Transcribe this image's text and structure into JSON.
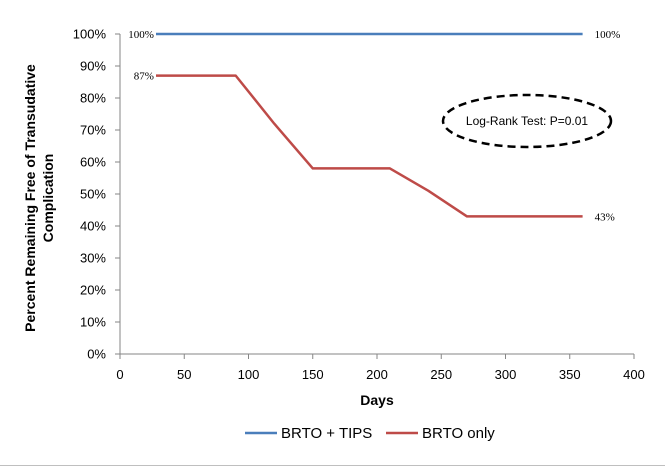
{
  "chart_data": {
    "type": "line",
    "title": "",
    "xlabel": "Days",
    "ylabel_line1": "Percent Remaining Free of Transudative",
    "ylabel_line2": "Complication",
    "xlim": [
      0,
      400
    ],
    "ylim": [
      0,
      100
    ],
    "x_ticks": [
      "0",
      "50",
      "100",
      "150",
      "200",
      "250",
      "300",
      "350",
      "400"
    ],
    "y_ticks": [
      "0%",
      "10%",
      "20%",
      "30%",
      "40%",
      "50%",
      "60%",
      "70%",
      "80%",
      "90%",
      "100%"
    ],
    "grid": false,
    "legend_position": "bottom",
    "series": [
      {
        "name": "BRTO + TIPS",
        "color": "#4a7ebb",
        "x": [
          28,
          90,
          150,
          210,
          240,
          270,
          360
        ],
        "y": [
          100,
          100,
          100,
          100,
          100,
          100,
          100
        ]
      },
      {
        "name": "BRTO only",
        "color": "#be4b48",
        "x": [
          28,
          90,
          120,
          150,
          210,
          240,
          270,
          360
        ],
        "y": [
          87,
          87,
          72,
          58,
          58,
          51,
          43,
          43
        ]
      }
    ],
    "data_labels": [
      {
        "text": "100%",
        "series": 0,
        "point": 0,
        "side": "left"
      },
      {
        "text": "100%",
        "series": 0,
        "point": 6,
        "side": "right"
      },
      {
        "text": "87%",
        "series": 1,
        "point": 0,
        "side": "left"
      },
      {
        "text": "43%",
        "series": 1,
        "point": 7,
        "side": "right"
      }
    ],
    "annotation": "Log-Rank Test: P=0.01"
  }
}
